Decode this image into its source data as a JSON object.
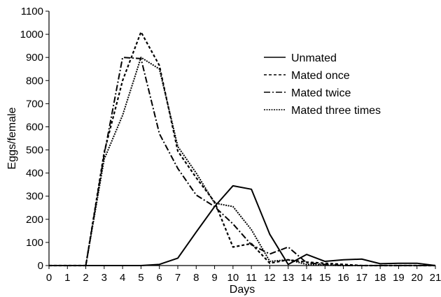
{
  "chart_data": {
    "type": "line",
    "xlabel": "Days",
    "ylabel": "Eggs/female",
    "xlim": [
      0,
      21
    ],
    "ylim": [
      0,
      1100
    ],
    "x_ticks": [
      0,
      1,
      2,
      3,
      4,
      5,
      6,
      7,
      8,
      9,
      10,
      11,
      12,
      13,
      14,
      15,
      16,
      17,
      18,
      19,
      20,
      21
    ],
    "y_ticks": [
      0,
      100,
      200,
      300,
      400,
      500,
      600,
      700,
      800,
      900,
      1000,
      1100
    ],
    "grid": false,
    "legend_position": "top-right",
    "x": [
      0,
      1,
      2,
      3,
      4,
      5,
      6,
      7,
      8,
      9,
      10,
      11,
      12,
      13,
      14,
      15,
      16,
      17,
      18,
      19,
      20,
      21
    ],
    "series": [
      {
        "name": "Unmated",
        "line_style": "solid",
        "color": "#000000",
        "values": [
          0,
          0,
          0,
          0,
          0,
          0,
          5,
          32,
          145,
          255,
          345,
          330,
          135,
          5,
          48,
          18,
          25,
          28,
          8,
          10,
          10,
          0
        ]
      },
      {
        "name": "Mated once",
        "line_style": "dotted",
        "color": "#000000",
        "values": [
          0,
          0,
          0,
          490,
          800,
          1010,
          865,
          495,
          380,
          275,
          80,
          95,
          10,
          25,
          15,
          10,
          5,
          0,
          0,
          0,
          0,
          0
        ]
      },
      {
        "name": "Mated twice",
        "line_style": "dash-dot",
        "color": "#000000",
        "values": [
          0,
          0,
          0,
          480,
          900,
          895,
          570,
          420,
          305,
          255,
          180,
          90,
          50,
          80,
          12,
          5,
          0,
          0,
          0,
          0,
          0,
          0
        ]
      },
      {
        "name": "Mated three times",
        "line_style": "dense-dotted",
        "color": "#000000",
        "values": [
          0,
          0,
          0,
          460,
          650,
          900,
          850,
          515,
          400,
          270,
          255,
          155,
          18,
          25,
          5,
          2,
          0,
          0,
          0,
          0,
          0,
          0
        ]
      }
    ]
  }
}
